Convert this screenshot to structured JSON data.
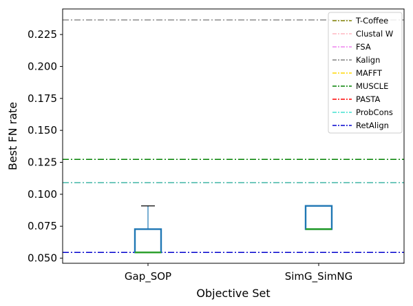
{
  "chart_data": {
    "type": "box",
    "title": "",
    "xlabel": "Objective Set",
    "ylabel": "Best FN rate",
    "ylim": [
      0.046,
      0.245
    ],
    "yticks": [
      "0.050",
      "0.075",
      "0.100",
      "0.125",
      "0.150",
      "0.175",
      "0.200",
      "0.225"
    ],
    "categories": [
      "Gap_SOP",
      "SimG_SimNG"
    ],
    "boxes": [
      {
        "name": "Gap_SOP",
        "whisker_low": 0.0545,
        "q1": 0.0545,
        "median": 0.0545,
        "q3": 0.0727,
        "whisker_high": 0.0909
      },
      {
        "name": "SimG_SimNG",
        "whisker_low": 0.0727,
        "q1": 0.0727,
        "median": 0.0727,
        "q3": 0.0909,
        "whisker_high": 0.0909
      }
    ],
    "reference_lines": [
      {
        "name": "T-Coffee",
        "value": 0.1273,
        "color": "#808000"
      },
      {
        "name": "Clustal W",
        "value": 0.1273,
        "color": "#ffb6c1"
      },
      {
        "name": "FSA",
        "value": 0.1273,
        "color": "#ee82ee"
      },
      {
        "name": "Kalign",
        "value": 0.2364,
        "color": "#808080"
      },
      {
        "name": "MAFFT",
        "value": 0.1273,
        "color": "#ffd700"
      },
      {
        "name": "MUSCLE",
        "value": 0.1273,
        "color": "#008000"
      },
      {
        "name": "PASTA",
        "value": 0.1091,
        "color": "#ff0000"
      },
      {
        "name": "ProbCons",
        "value": 0.1091,
        "color": "#40e0d0"
      },
      {
        "name": "RetAlign",
        "value": 0.0545,
        "color": "#0000cd"
      }
    ],
    "legend_position": "top-right",
    "grid": false,
    "colors": {
      "box": "#1f77b4",
      "median": "#2ca02c",
      "whisker": "#1f77b4",
      "cap": "#000000"
    }
  }
}
